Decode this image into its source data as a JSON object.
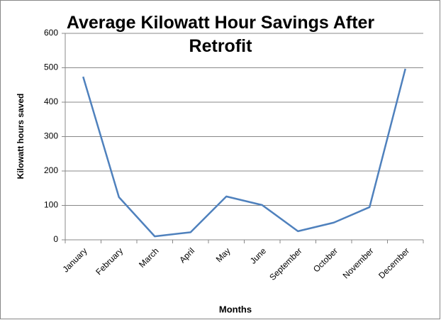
{
  "chart_data": {
    "type": "line",
    "title": "Average Kilowatt Hour Savings After Retrofit",
    "x_label": "Months",
    "y_label": "Kilowatt hours saved",
    "categories": [
      "January",
      "February",
      "March",
      "April",
      "May",
      "June",
      "September",
      "October",
      "November",
      "December"
    ],
    "series": [
      {
        "name": "Kilowatt hours saved",
        "color": "#4f81bd",
        "values": [
          474,
          124,
          10,
          22,
          126,
          101,
          25,
          50,
          95,
          497
        ]
      }
    ],
    "ylim": [
      0,
      600
    ],
    "yticks": [
      0,
      100,
      200,
      300,
      400,
      500,
      600
    ],
    "grid": true
  }
}
